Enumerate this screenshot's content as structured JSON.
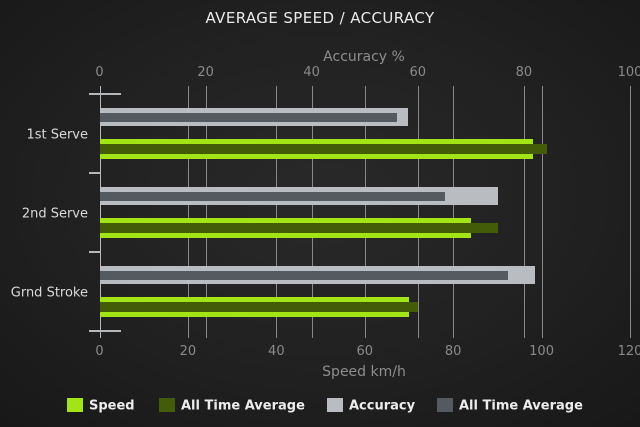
{
  "title": "AVERAGE SPEED / ACCURACY",
  "colors": {
    "speed": "#a2e414",
    "speed_average": "#425c08",
    "accuracy": "#b9bdc1",
    "accuracy_average": "#555a61",
    "grid": "#87898c",
    "axis": "#b5b8ba",
    "background": "#1e1e1e"
  },
  "chart_data": {
    "type": "bar",
    "orientation": "horizontal",
    "grid": true,
    "legend_position": "bottom",
    "categories": [
      "1st Serve",
      "2nd Serve",
      "Grnd Stroke"
    ],
    "axes": {
      "top": {
        "label": "Accuracy %",
        "ticks": [
          0,
          20,
          40,
          60,
          80,
          100
        ],
        "range": [
          0,
          100
        ]
      },
      "bottom": {
        "label": "Speed km/h",
        "ticks": [
          0,
          20,
          40,
          60,
          80,
          100,
          120
        ],
        "range": [
          0,
          120
        ]
      }
    },
    "series": [
      {
        "name": "Speed",
        "axis": "bottom",
        "role": "current",
        "color": "#a2e414",
        "values": [
          98,
          84,
          70
        ]
      },
      {
        "name": "All Time Average",
        "axis": "bottom",
        "role": "average",
        "color": "#425c08",
        "values": [
          101,
          90,
          72
        ]
      },
      {
        "name": "Accuracy",
        "axis": "top",
        "role": "current",
        "color": "#b9bdc1",
        "values": [
          58,
          75,
          82
        ]
      },
      {
        "name": "All Time Average",
        "axis": "top",
        "role": "average",
        "color": "#555a61",
        "values": [
          56,
          65,
          77
        ]
      }
    ]
  },
  "legend": [
    {
      "label": "Speed",
      "color": "#a2e414"
    },
    {
      "label": "All Time Average",
      "color": "#425c08"
    },
    {
      "label": "Accuracy",
      "color": "#b9bdc1"
    },
    {
      "label": "All Time Average",
      "color": "#555a61"
    }
  ]
}
